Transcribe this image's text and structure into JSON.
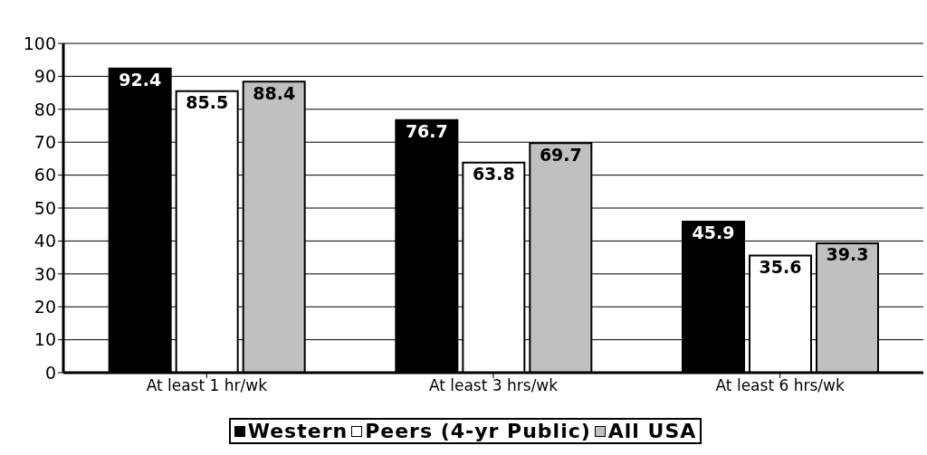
{
  "chart_data": {
    "type": "bar",
    "categories": [
      "At least 1 hr/wk",
      "At least 3 hrs/wk",
      "At least 6 hrs/wk"
    ],
    "series": [
      {
        "name": "Western",
        "color": "#000000",
        "values": [
          92.4,
          76.7,
          45.9
        ]
      },
      {
        "name": "Peers (4-yr Public)",
        "color": "#ffffff",
        "values": [
          85.5,
          63.8,
          35.6
        ]
      },
      {
        "name": "All USA",
        "color": "#c0c0c0",
        "values": [
          88.4,
          69.7,
          39.3
        ]
      }
    ],
    "ylim": [
      0,
      100
    ],
    "yticks": [
      0,
      10,
      20,
      30,
      40,
      50,
      60,
      70,
      80,
      90,
      100
    ],
    "grid": "y",
    "legend": "bottom",
    "data_labels": true
  }
}
